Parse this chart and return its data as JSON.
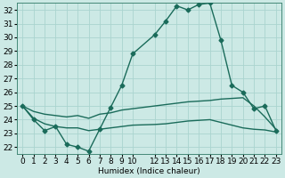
{
  "xlabel": "Humidex (Indice chaleur)",
  "bg_color": "#cce9e5",
  "grid_color": "#aad4cf",
  "line_color": "#1a6b5a",
  "xlim": [
    -0.5,
    23.5
  ],
  "ylim": [
    21.5,
    32.5
  ],
  "yticks": [
    22,
    23,
    24,
    25,
    26,
    27,
    28,
    29,
    30,
    31,
    32
  ],
  "x_ticks": [
    0,
    1,
    2,
    3,
    4,
    5,
    6,
    7,
    8,
    9,
    10,
    12,
    13,
    14,
    15,
    16,
    17,
    18,
    19,
    20,
    21,
    22,
    23
  ],
  "line1_x": [
    0,
    1,
    2,
    3,
    4,
    5,
    6,
    7,
    8,
    9,
    10,
    12,
    13,
    14,
    15,
    16,
    17,
    18,
    19,
    20,
    21,
    22,
    23
  ],
  "line1_y": [
    25.0,
    24.0,
    23.2,
    23.5,
    22.2,
    22.0,
    21.7,
    23.3,
    24.9,
    26.5,
    28.8,
    30.2,
    31.2,
    32.3,
    32.0,
    32.4,
    32.5,
    29.8,
    26.5,
    26.0,
    24.8,
    25.0,
    23.2
  ],
  "line2_x": [
    0,
    1,
    2,
    3,
    4,
    5,
    6,
    7,
    8,
    9,
    10,
    12,
    13,
    14,
    15,
    16,
    17,
    18,
    19,
    20,
    21,
    22,
    23
  ],
  "line2_y": [
    25.0,
    24.6,
    24.4,
    24.3,
    24.2,
    24.3,
    24.1,
    24.4,
    24.5,
    24.7,
    24.8,
    25.0,
    25.1,
    25.2,
    25.3,
    25.35,
    25.4,
    25.5,
    25.55,
    25.6,
    25.0,
    24.2,
    23.3
  ],
  "line3_x": [
    0,
    1,
    2,
    3,
    4,
    5,
    6,
    7,
    8,
    9,
    10,
    12,
    13,
    14,
    15,
    16,
    17,
    18,
    19,
    20,
    21,
    22,
    23
  ],
  "line3_y": [
    25.0,
    24.1,
    23.7,
    23.5,
    23.4,
    23.4,
    23.2,
    23.3,
    23.4,
    23.5,
    23.6,
    23.65,
    23.7,
    23.8,
    23.9,
    23.95,
    24.0,
    23.8,
    23.6,
    23.4,
    23.3,
    23.25,
    23.1
  ],
  "marker": "D",
  "marker_size": 2.5,
  "linewidth": 1.0,
  "tick_fontsize": 6.5
}
